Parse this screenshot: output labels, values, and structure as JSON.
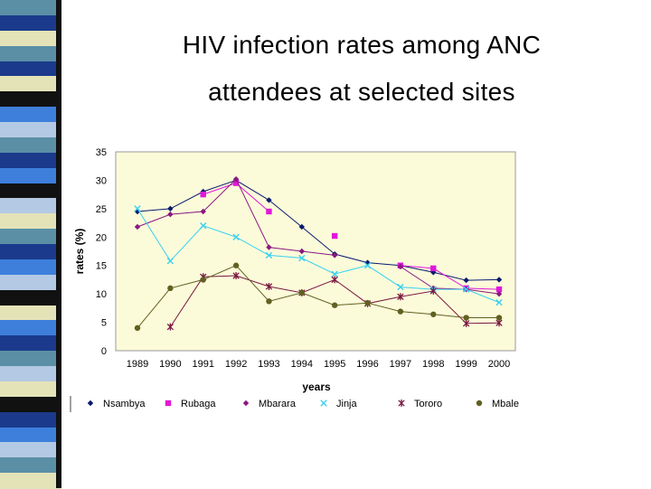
{
  "title_line1": "HIV infection rates among ANC",
  "title_line2": "attendees at selected sites",
  "stripe_colors": [
    "#5a8fa6",
    "#1b3a8c",
    "#e4e3b8",
    "#111111",
    "#3d7fdb",
    "#b4c9e4"
  ],
  "chart_data": {
    "type": "line",
    "xlabel": "years",
    "ylabel": "rates (%)",
    "ylim": [
      0,
      35
    ],
    "yticks": [
      0,
      5,
      10,
      15,
      20,
      25,
      30,
      35
    ],
    "x": [
      "1989",
      "1990",
      "1991",
      "1992",
      "1993",
      "1994",
      "1995",
      "1996",
      "1997",
      "1998",
      "1999",
      "2000"
    ],
    "series": [
      {
        "name": "Nsambya",
        "color": "#0a1a6e",
        "marker": "diamond",
        "values": [
          24.5,
          25,
          28,
          30,
          26.5,
          21.8,
          17,
          15.5,
          15,
          13.8,
          12.4,
          12.5
        ]
      },
      {
        "name": "Rubaga",
        "color": "#e018d8",
        "marker": "square",
        "values": [
          null,
          null,
          27.5,
          29.5,
          24.5,
          null,
          20.2,
          null,
          15,
          14.5,
          11,
          10.8
        ]
      },
      {
        "name": "Mbarara",
        "color": "#8a1880",
        "marker": "diamond",
        "values": [
          21.8,
          24,
          24.5,
          30.2,
          18.2,
          17.5,
          16.8,
          null,
          14.8,
          11,
          10.8,
          10
        ]
      },
      {
        "name": "Jinja",
        "color": "#3ad0f0",
        "marker": "x",
        "values": [
          25,
          15.8,
          22,
          20,
          16.8,
          16.3,
          13.5,
          15,
          11.2,
          10.8,
          10.8,
          8.5
        ]
      },
      {
        "name": "Tororo",
        "color": "#7a1840",
        "marker": "star",
        "values": [
          null,
          4.2,
          13,
          13.2,
          11.3,
          10.2,
          12.5,
          8.3,
          9.5,
          10.5,
          4.8,
          4.9
        ]
      },
      {
        "name": "Mbale",
        "color": "#606020",
        "marker": "circle",
        "values": [
          4,
          11,
          12.5,
          15,
          8.7,
          10.2,
          8,
          8.4,
          6.9,
          6.4,
          5.8,
          5.8
        ]
      }
    ]
  }
}
